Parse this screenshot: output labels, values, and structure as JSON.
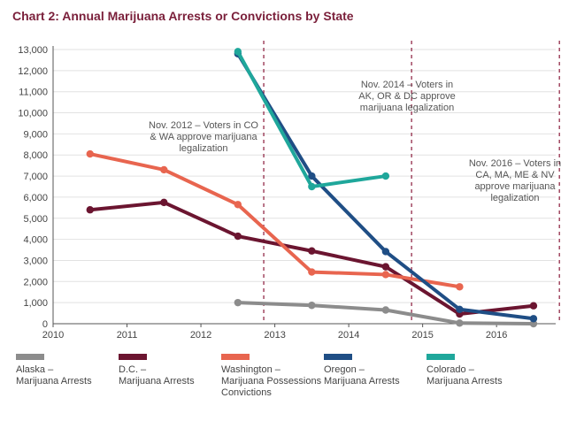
{
  "title": "Chart 2: Annual Marijuana Arrests or Convictions by State",
  "chart_data": {
    "type": "line",
    "title": "Chart 2: Annual Marijuana Arrests or Convictions by State",
    "x_ticks": [
      "2010",
      "2011",
      "2012",
      "2013",
      "2014",
      "2015",
      "2016"
    ],
    "y_ticks": [
      "0",
      "1,000",
      "2,000",
      "3,000",
      "4,000",
      "5,000",
      "6,000",
      "7,000",
      "8,000",
      "9,000",
      "10,000",
      "11,000",
      "12,000",
      "13,000"
    ],
    "ylim": [
      0,
      13000
    ],
    "xlim": [
      2010,
      2016.8
    ],
    "grid": "horizontal",
    "legend_position": "bottom",
    "series": [
      {
        "name": "Alaska – Marijuana Arrests",
        "label_lines": [
          "Alaska –",
          "Marijuana Arrests"
        ],
        "color": "#8c8c8c",
        "points": [
          [
            2012.5,
            1000
          ],
          [
            2013.5,
            870
          ],
          [
            2014.5,
            650
          ],
          [
            2015.5,
            30
          ],
          [
            2016.5,
            0
          ]
        ]
      },
      {
        "name": "D.C. – Marijuana Arrests",
        "label_lines": [
          "D.C. –",
          "Marijuana Arrests"
        ],
        "color": "#6b1530",
        "points": [
          [
            2010.5,
            5400
          ],
          [
            2011.5,
            5750
          ],
          [
            2012.5,
            4150
          ],
          [
            2013.5,
            3450
          ],
          [
            2014.5,
            2700
          ],
          [
            2015.5,
            460
          ],
          [
            2016.5,
            850
          ]
        ]
      },
      {
        "name": "Washington – Marijuana Possessions Convictions",
        "label_lines": [
          "Washington –",
          "Marijuana Possessions",
          "Convictions"
        ],
        "color": "#e8654f",
        "points": [
          [
            2010.5,
            8050
          ],
          [
            2011.5,
            7300
          ],
          [
            2012.5,
            5650
          ],
          [
            2013.5,
            2450
          ],
          [
            2014.5,
            2330
          ],
          [
            2015.5,
            1750
          ]
        ]
      },
      {
        "name": "Oregon – Marijuana Arrests",
        "label_lines": [
          "Oregon –",
          "Marijuana Arrests"
        ],
        "color": "#1f4e85",
        "points": [
          [
            2012.5,
            12800
          ],
          [
            2013.5,
            7000
          ],
          [
            2014.5,
            3420
          ],
          [
            2015.5,
            680
          ],
          [
            2016.5,
            240
          ]
        ]
      },
      {
        "name": "Colorado – Marijuana Arrests",
        "label_lines": [
          "Colorado –",
          "Marijuana Arrests"
        ],
        "color": "#1fa79b",
        "points": [
          [
            2012.5,
            12900
          ],
          [
            2013.5,
            6500
          ],
          [
            2014.5,
            7000
          ]
        ]
      }
    ],
    "annotations": [
      {
        "lines": [
          "Nov. 2012 – Voters in CO",
          "& WA approve marijuana",
          "legalization"
        ],
        "x": 2012.85
      },
      {
        "lines": [
          "Nov. 2014 – Voters in",
          "AK, OR & DC approve",
          "marijuana legalization"
        ],
        "x": 2014.85
      },
      {
        "lines": [
          "Nov. 2016 – Voters in",
          "CA, MA, ME & NV",
          "approve marijuana",
          "legalization"
        ],
        "x": 2016.85
      }
    ]
  }
}
